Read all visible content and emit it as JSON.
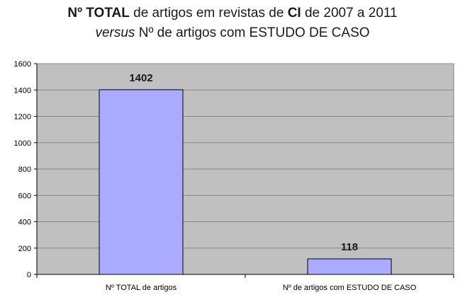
{
  "chart_data": {
    "type": "bar",
    "title": {
      "line1": {
        "prefix": "Nº TOTAL",
        "middle": " de artigos em revistas de ",
        "bold_word": "CI",
        "suffix": " de 2007 a 2011"
      },
      "line2": {
        "italic": "versus",
        "rest": " Nº de artigos com ESTUDO DE CASO"
      }
    },
    "categories": [
      "Nº TOTAL de artigos",
      "Nº de artigos com ESTUDO DE CASO"
    ],
    "values": [
      1402,
      118
    ],
    "data_labels": [
      "1402",
      "118"
    ],
    "ylim": [
      0,
      1600
    ],
    "yticks": [
      "0",
      "200",
      "400",
      "600",
      "800",
      "1000",
      "1200",
      "1400",
      "1600"
    ],
    "xlabel": "",
    "ylabel": "",
    "grid": true,
    "legend": "none",
    "colors": {
      "bar_fill": "#aaaaff",
      "bar_stroke": "#000000",
      "plot_bg": "#c0c0c0",
      "gridline": "#888888"
    }
  }
}
